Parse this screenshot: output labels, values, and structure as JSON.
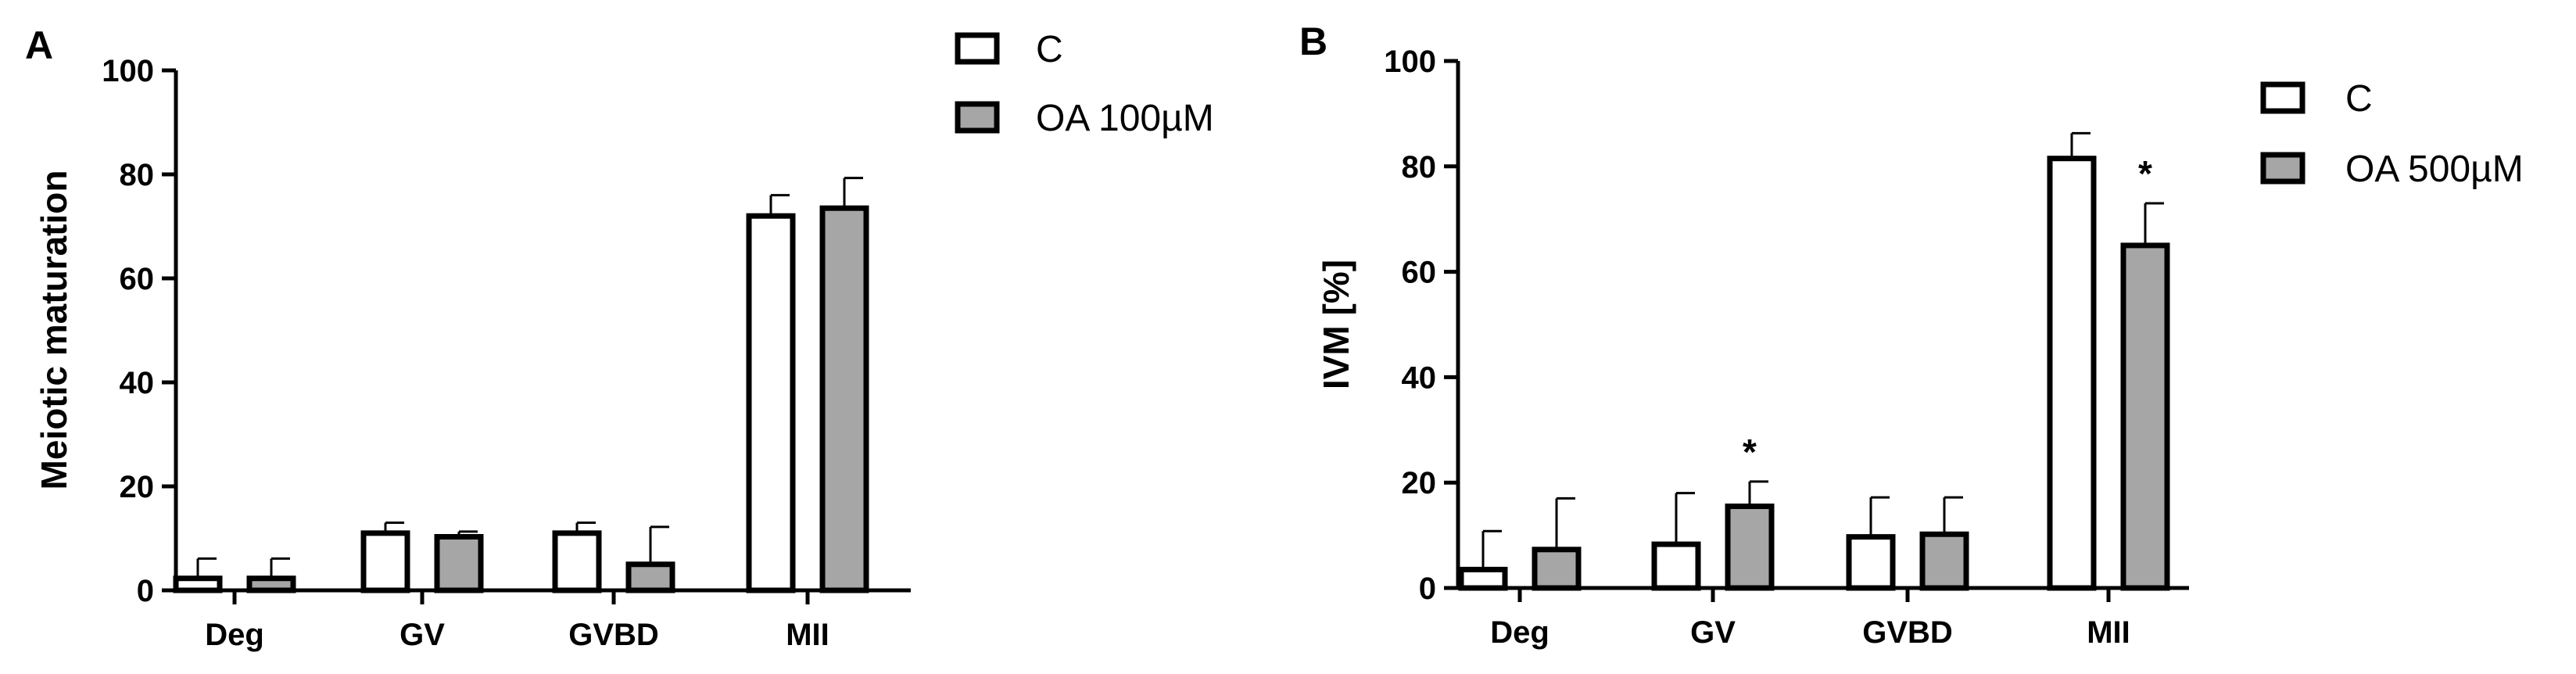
{
  "chart_data": [
    {
      "panel": "A",
      "type": "bar",
      "categories": [
        "Deg",
        "GV",
        "GVBD",
        "MII"
      ],
      "ylabel": "Meiotic maturation",
      "xlabel": "",
      "ylim": [
        0,
        100
      ],
      "yticks": [
        0,
        20,
        40,
        60,
        80,
        100
      ],
      "grid": false,
      "legend_position": "top-right",
      "series": [
        {
          "name": "C",
          "color": "#ffffff",
          "values": [
            2.3,
            11,
            11,
            72
          ],
          "errors": [
            3.8,
            2,
            2,
            4
          ],
          "markers": [
            "",
            "",
            "",
            ""
          ]
        },
        {
          "name": "OA 100µM",
          "color": "#a6a6a6",
          "values": [
            2.3,
            10.3,
            5,
            73.5
          ],
          "errors": [
            3.8,
            1,
            7.2,
            5.8
          ],
          "markers": [
            "",
            "",
            "",
            ""
          ]
        }
      ]
    },
    {
      "panel": "B",
      "type": "bar",
      "categories": [
        "Deg",
        "GV",
        "GVBD",
        "MII"
      ],
      "ylabel": "IVM [%]",
      "xlabel": "",
      "ylim": [
        0,
        100
      ],
      "yticks": [
        0,
        20,
        40,
        60,
        80,
        100
      ],
      "grid": false,
      "legend_position": "top-right",
      "series": [
        {
          "name": "C",
          "color": "#ffffff",
          "values": [
            3.5,
            8.3,
            9.7,
            81.5
          ],
          "errors": [
            7.3,
            9.7,
            7.5,
            4.8
          ],
          "markers": [
            "",
            "",
            "",
            ""
          ]
        },
        {
          "name": "OA 500µM",
          "color": "#a6a6a6",
          "values": [
            7.3,
            15.5,
            10.2,
            65
          ],
          "errors": [
            9.7,
            4.7,
            7,
            8
          ],
          "markers": [
            "",
            "*",
            "",
            "*"
          ]
        }
      ]
    }
  ]
}
